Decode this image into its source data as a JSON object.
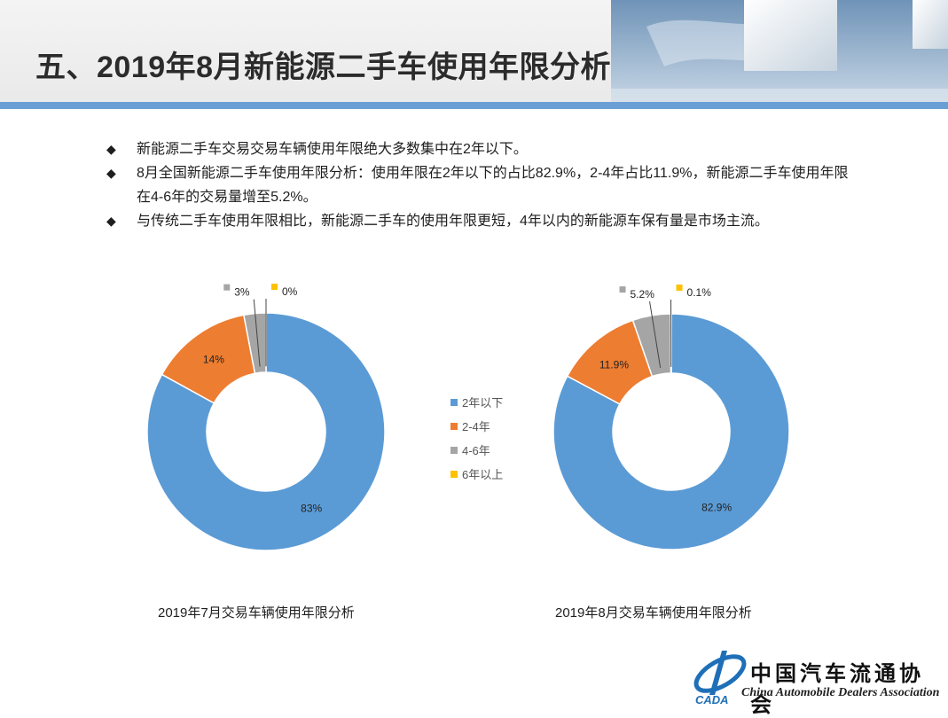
{
  "title": "五、2019年8月新能源二手车使用年限分析",
  "bullets": [
    "新能源二手车交易交易车辆使用年限绝大多数集中在2年以下。",
    "8月全国新能源二手车使用年限分析：使用年限在2年以下的占比82.9%，2-4年占比11.9%，新能源二手车使用年限在4-6年的交易量增至5.2%。",
    "与传统二手车使用年限相比，新能源二手车的使用年限更短，4年以内的新能源车保有量是市场主流。"
  ],
  "bullet_icon": "◆",
  "chart_data": [
    {
      "type": "pie",
      "subtype": "donut",
      "title": "2019年7月交易车辆使用年限分析",
      "categories": [
        "2年以下",
        "2-4年",
        "4-6年",
        "6年以上"
      ],
      "values": [
        83,
        14,
        3,
        0
      ],
      "labels": [
        "83%",
        "14%",
        "3%",
        "0%"
      ],
      "colors": [
        "#5b9bd5",
        "#ed7d31",
        "#a5a5a5",
        "#ffc000"
      ]
    },
    {
      "type": "pie",
      "subtype": "donut",
      "title": "2019年8月交易车辆使用年限分析",
      "categories": [
        "2年以下",
        "2-4年",
        "4-6年",
        "6年以上"
      ],
      "values": [
        82.9,
        11.9,
        5.2,
        0.1
      ],
      "labels": [
        "82.9%",
        "11.9%",
        "5.2%",
        "0.1%"
      ],
      "colors": [
        "#5b9bd5",
        "#ed7d31",
        "#a5a5a5",
        "#ffc000"
      ]
    }
  ],
  "legend": {
    "items": [
      "2年以下",
      "2-4年",
      "4-6年",
      "6年以上"
    ],
    "colors": [
      "#5b9bd5",
      "#ed7d31",
      "#a5a5a5",
      "#ffc000"
    ]
  },
  "logo": {
    "name_cn": "中国汽车流通协会",
    "name_en": "China Automobile Dealers Association",
    "abbr": "CADA"
  },
  "colors": {
    "accent_bar": "#6a9fd6"
  }
}
